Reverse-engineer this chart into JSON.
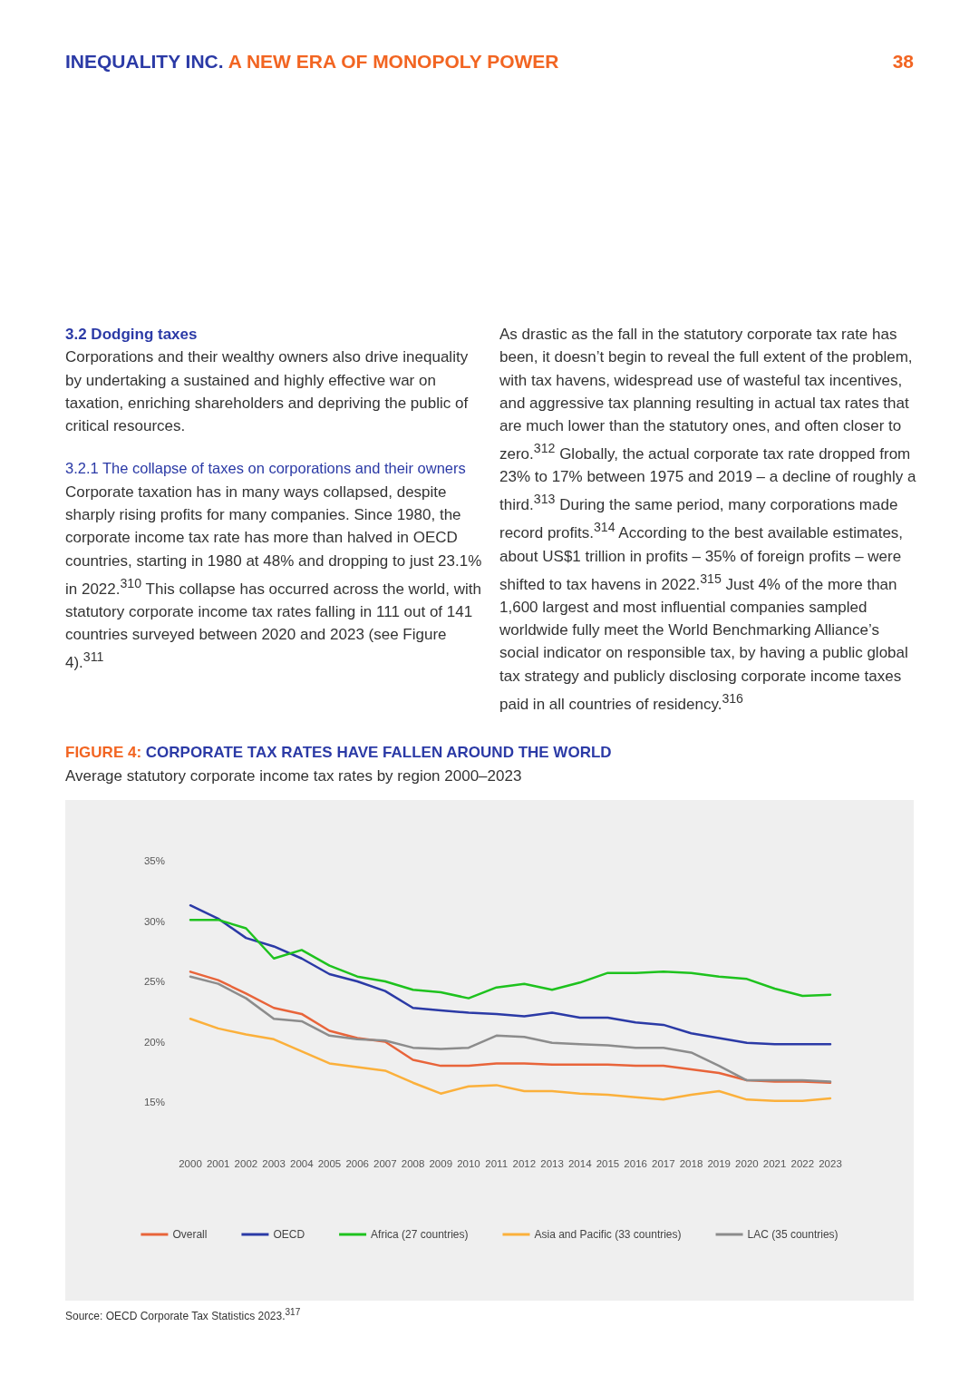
{
  "chart_data": {
    "type": "line",
    "title": "CORPORATE TAX RATES HAVE FALLEN AROUND THE WORLD",
    "subtitle": "Average statutory corporate income tax rates by region 2000–2023",
    "categories": [
      "2000",
      "2001",
      "2002",
      "2003",
      "2004",
      "2005",
      "2006",
      "2007",
      "2008",
      "2009",
      "2010",
      "2011",
      "2012",
      "2013",
      "2014",
      "2015",
      "2016",
      "2017",
      "2018",
      "2019",
      "2020",
      "2021",
      "2022",
      "2023"
    ],
    "series": [
      {
        "name": "Overall",
        "color": "#e8643a",
        "values": [
          25.8,
          25.1,
          24.0,
          22.8,
          22.3,
          20.9,
          20.3,
          20.0,
          18.5,
          18.0,
          18.0,
          18.2,
          18.2,
          18.1,
          18.1,
          18.1,
          18.0,
          18.0,
          17.7,
          17.4,
          16.8,
          16.7,
          16.7,
          16.6
        ]
      },
      {
        "name": "OECD",
        "color": "#2b3aa6",
        "values": [
          31.3,
          30.2,
          28.6,
          27.9,
          26.9,
          25.6,
          25.0,
          24.2,
          22.8,
          22.6,
          22.4,
          22.3,
          22.1,
          22.4,
          22.0,
          22.0,
          21.6,
          21.4,
          20.7,
          20.3,
          19.9,
          19.8,
          19.8,
          19.8
        ]
      },
      {
        "name": "Africa (27 countries)",
        "color": "#1ec21e",
        "values": [
          30.1,
          30.1,
          29.4,
          26.9,
          27.6,
          26.3,
          25.4,
          25.0,
          24.3,
          24.1,
          23.6,
          24.5,
          24.8,
          24.3,
          24.9,
          25.7,
          25.7,
          25.8,
          25.7,
          25.4,
          25.2,
          24.4,
          23.8,
          23.9
        ]
      },
      {
        "name": "Asia and Pacific (33 countries)",
        "color": "#fbb03b",
        "values": [
          21.9,
          21.1,
          20.6,
          20.2,
          19.2,
          18.2,
          17.9,
          17.6,
          16.6,
          15.7,
          16.3,
          16.4,
          15.9,
          15.9,
          15.7,
          15.6,
          15.4,
          15.2,
          15.6,
          15.9,
          15.2,
          15.1,
          15.1,
          15.3
        ]
      },
      {
        "name": "LAC (35 countries)",
        "color": "#8c8c8c",
        "values": [
          25.4,
          24.8,
          23.6,
          21.9,
          21.7,
          20.5,
          20.2,
          20.1,
          19.5,
          19.4,
          19.5,
          20.5,
          20.4,
          19.9,
          19.8,
          19.7,
          19.5,
          19.5,
          19.1,
          18.0,
          16.8,
          16.8,
          16.8,
          16.7
        ]
      }
    ],
    "ylim": [
      15,
      35
    ],
    "yticks": [
      {
        "value": 15,
        "label": "15%"
      },
      {
        "value": 20,
        "label": "20%"
      },
      {
        "value": 25,
        "label": "25%"
      },
      {
        "value": 30,
        "label": "30%"
      },
      {
        "value": 35,
        "label": "35%"
      }
    ],
    "grid": false,
    "legend": "bottom",
    "marker": "none",
    "line_style": "solid",
    "annotations": [
      "INEQUALITY INC.",
      "A NEW ERA OF MONOPOLY POWER",
      "38",
      "3.2 Dodging taxes",
      "Corporations and their wealthy owners also drive inequality by undertaking a sustained and highly effective war on taxation, enriching shareholders and depriving the public of critical resources.",
      "3.2.1 The collapse of taxes on corporations and their owners",
      "Corporate taxation has in many ways collapsed, despite sharply rising profits for many companies. Since 1980, the corporate income tax rate has more than halved in OECD countries, starting in 1980 at 48% and dropping to just 23.1% in 2022.$^{310}$ This collapse has occurred across the world, with statutory corporate income tax rates falling in 111 out of 141 countries surveyed between 2020 and 2023 (see Figure 4).$^{311}$",
      "As drastic as the fall in the statutory corporate tax rate has been, it doesn’t begin to reveal the full extent of the problem, with tax havens, widespread use of wasteful tax incentives, and aggressive tax planning resulting in actual tax rates that are much lower than the statutory ones, and often closer to zero.$^{312}$ Globally, the actual corporate tax rate dropped from 23% to 17% between 1975 and 2019 – a decline of roughly a third.$^{313}$ During the same period, many corporations made record profits.$^{314}$ According to the best available estimates, about US$1 trillion in profits – 35% of foreign profits – were shifted to tax havens in 2022.$^{315}$ Just 4% of the more than 1,600 largest and most influential companies sampled worldwide fully meet the World Benchmarking Alliance’s social indicator on responsible tax, by having a public global tax strategy and publicly disclosing corporate income taxes paid in all countries of residency.$^{316}$",
      "FIGURE 4:",
      "Source: OECD Corporate Tax Statistics 2023.$^{317}$"
    ]
  }
}
